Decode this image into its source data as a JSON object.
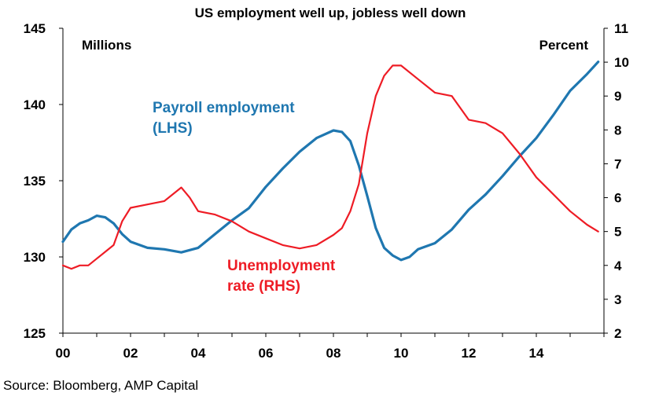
{
  "chart_data": {
    "type": "line",
    "title": "US employment well up, jobless well down",
    "source": "Source: Bloomberg, AMP Capital",
    "x_tick_labels": [
      "00",
      "02",
      "04",
      "06",
      "08",
      "10",
      "12",
      "14"
    ],
    "x_tick_values": [
      2000,
      2002,
      2004,
      2006,
      2008,
      2010,
      2012,
      2014
    ],
    "xlim": [
      2000,
      2016
    ],
    "left_axis": {
      "unit_label": "Millions",
      "ylim": [
        125,
        145
      ],
      "ticks": [
        125,
        130,
        135,
        140,
        145
      ]
    },
    "right_axis": {
      "unit_label": "Percent",
      "ylim": [
        2,
        11
      ],
      "ticks": [
        2,
        3,
        4,
        5,
        6,
        7,
        8,
        9,
        10,
        11
      ]
    },
    "colors": {
      "payroll": "#1f77b0",
      "unemployment": "#ee1c25"
    },
    "annotations": {
      "payroll": [
        "Payroll employment",
        "(LHS)"
      ],
      "unemployment": [
        "Unemployment",
        "rate (RHS)"
      ]
    },
    "series": [
      {
        "name": "Payroll employment (LHS)",
        "axis": "left",
        "x": [
          2000,
          2000.25,
          2000.5,
          2000.75,
          2001,
          2001.25,
          2001.5,
          2001.75,
          2002,
          2002.5,
          2003,
          2003.5,
          2004,
          2004.5,
          2005,
          2005.5,
          2006,
          2006.5,
          2007,
          2007.5,
          2008,
          2008.25,
          2008.5,
          2008.75,
          2009,
          2009.25,
          2009.5,
          2009.75,
          2010,
          2010.25,
          2010.5,
          2011,
          2011.5,
          2012,
          2012.5,
          2013,
          2013.5,
          2014,
          2014.5,
          2015,
          2015.5,
          2015.83
        ],
        "values": [
          131.0,
          131.8,
          132.2,
          132.4,
          132.7,
          132.6,
          132.2,
          131.5,
          131.0,
          130.6,
          130.5,
          130.3,
          130.6,
          131.5,
          132.4,
          133.2,
          134.6,
          135.8,
          136.9,
          137.8,
          138.3,
          138.2,
          137.6,
          136.0,
          134.0,
          131.9,
          130.6,
          130.1,
          129.8,
          130.0,
          130.5,
          130.9,
          131.8,
          133.1,
          134.1,
          135.3,
          136.6,
          137.8,
          139.3,
          140.9,
          142.0,
          142.8
        ]
      },
      {
        "name": "Unemployment rate (RHS)",
        "axis": "right",
        "x": [
          2000,
          2000.25,
          2000.5,
          2000.75,
          2001,
          2001.25,
          2001.5,
          2001.75,
          2002,
          2002.5,
          2003,
          2003.5,
          2003.75,
          2004,
          2004.5,
          2005,
          2005.5,
          2006,
          2006.5,
          2007,
          2007.5,
          2008,
          2008.25,
          2008.5,
          2008.75,
          2009,
          2009.25,
          2009.5,
          2009.75,
          2010,
          2010.5,
          2011,
          2011.5,
          2012,
          2012.5,
          2013,
          2013.5,
          2014,
          2014.5,
          2015,
          2015.5,
          2015.83
        ],
        "values": [
          4.0,
          3.9,
          4.0,
          4.0,
          4.2,
          4.4,
          4.6,
          5.3,
          5.7,
          5.8,
          5.9,
          6.3,
          6.0,
          5.6,
          5.5,
          5.3,
          5.0,
          4.8,
          4.6,
          4.5,
          4.6,
          4.9,
          5.1,
          5.6,
          6.4,
          7.9,
          9.0,
          9.6,
          9.9,
          9.9,
          9.5,
          9.1,
          9.0,
          8.3,
          8.2,
          7.9,
          7.3,
          6.6,
          6.1,
          5.6,
          5.2,
          5.0
        ]
      }
    ]
  }
}
